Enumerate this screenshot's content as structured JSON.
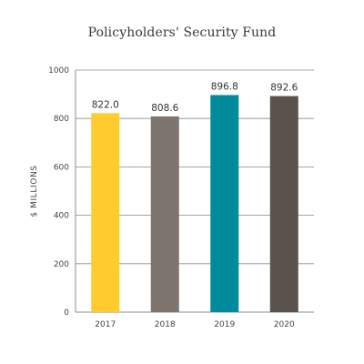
{
  "chart_data": {
    "type": "bar",
    "title": "Policyholders' Security Fund",
    "ylabel": "$ MILLIONS",
    "xlabel": "",
    "categories": [
      "2017",
      "2018",
      "2019",
      "2020"
    ],
    "values": [
      822.0,
      808.6,
      896.8,
      892.6
    ],
    "value_labels": [
      "822.0",
      "808.6",
      "896.8",
      "892.6"
    ],
    "colors": [
      "#FFCB2E",
      "#7E756E",
      "#008A9C",
      "#5A524C"
    ],
    "ylim": [
      0,
      1000
    ],
    "yticks": [
      0,
      200,
      400,
      600,
      800,
      1000
    ],
    "grid": true,
    "legend": "none"
  }
}
